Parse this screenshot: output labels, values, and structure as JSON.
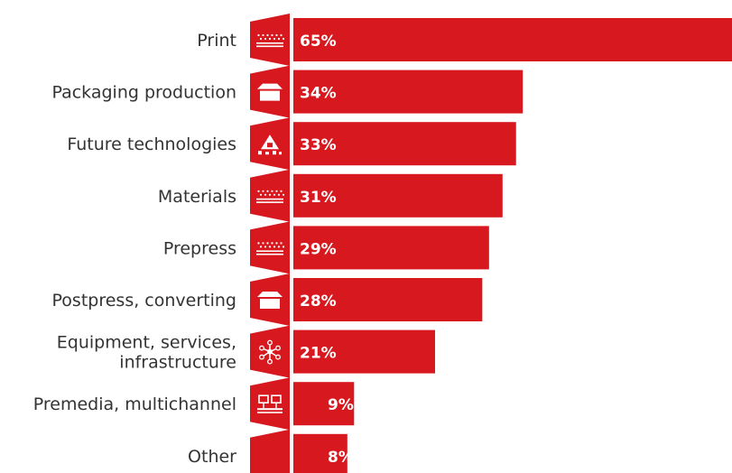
{
  "chart_data": {
    "type": "bar",
    "orientation": "horizontal",
    "categories": [
      "Print",
      "Packaging production",
      "Future technologies",
      "Materials",
      "Prepress",
      "Postpress, converting",
      "Equipment, services, infrastructure",
      "Premedia, multichannel",
      "Other"
    ],
    "category_lines": [
      [
        "Print"
      ],
      [
        "Packaging production"
      ],
      [
        "Future technologies"
      ],
      [
        "Materials"
      ],
      [
        "Prepress"
      ],
      [
        "Postpress, converting"
      ],
      [
        "Equipment, services,",
        "infrastructure"
      ],
      [
        "Premedia, multichannel"
      ],
      [
        "Other"
      ]
    ],
    "values": [
      65,
      34,
      33,
      31,
      29,
      28,
      21,
      9,
      8
    ],
    "value_labels": [
      "65%",
      "34%",
      "33%",
      "31%",
      "29%",
      "28%",
      "21%",
      "9%",
      "8%"
    ],
    "icons": [
      "print-icon",
      "package-icon",
      "future-technologies-icon",
      "materials-icon",
      "prepress-icon",
      "postpress-icon",
      "network-icon",
      "premedia-icon",
      "other-icon"
    ],
    "xlim": [
      0,
      65
    ],
    "grid": false,
    "legend": "none",
    "colors": {
      "bar": "#d7191f",
      "badge": "#d7191f",
      "label_text": "#333333",
      "value_text": "#ffffff"
    }
  }
}
